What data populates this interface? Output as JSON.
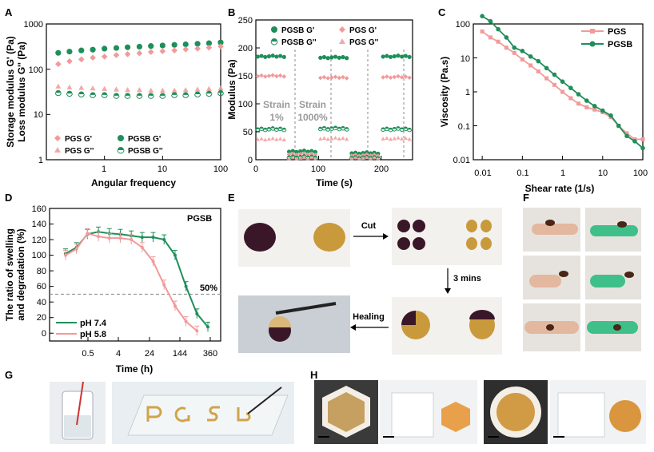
{
  "colors": {
    "pgs": "#f29a9a",
    "pgsb": "#1e8f5a",
    "dash": "#888888"
  },
  "panels": {
    "A": "A",
    "B": "B",
    "C": "C",
    "D": "D",
    "E": "E",
    "F": "F",
    "G": "G",
    "H": "H"
  },
  "chart_data": [
    {
      "id": "A",
      "type": "scatter",
      "xlabel": "Angular frequency",
      "ylabel_line1": "Storage modulus G' (Pa)",
      "ylabel_line2": "Loss modulus G'' (Pa)",
      "xscale": "log",
      "yscale": "log",
      "xlim": [
        0.1,
        100
      ],
      "ylim": [
        1,
        1000
      ],
      "xticks": [
        "1",
        "10",
        "100"
      ],
      "yticks": [
        "1",
        "10",
        "100",
        "1000"
      ],
      "legend": [
        "PGS G'",
        "PGS G''",
        "PGSB G'",
        "PGSB G''"
      ],
      "series": [
        {
          "name": "PGSB G'",
          "x": [
            0.16,
            0.25,
            0.4,
            0.63,
            1,
            1.6,
            2.5,
            4,
            6.3,
            10,
            16,
            25,
            40,
            63,
            100
          ],
          "values": [
            230,
            245,
            260,
            270,
            285,
            295,
            305,
            315,
            325,
            335,
            345,
            355,
            365,
            375,
            390
          ]
        },
        {
          "name": "PGS G'",
          "x": [
            0.16,
            0.25,
            0.4,
            0.63,
            1,
            1.6,
            2.5,
            4,
            6.3,
            10,
            16,
            25,
            40,
            63,
            100
          ],
          "values": [
            130,
            150,
            165,
            180,
            190,
            205,
            215,
            225,
            240,
            250,
            260,
            275,
            285,
            300,
            320
          ]
        },
        {
          "name": "PGS G''",
          "x": [
            0.16,
            0.25,
            0.4,
            0.63,
            1,
            1.6,
            2.5,
            4,
            6.3,
            10,
            16,
            25,
            40,
            63,
            100
          ],
          "values": [
            42,
            40,
            39,
            38,
            37,
            36,
            35,
            35,
            34,
            34,
            34,
            35,
            36,
            37,
            38
          ]
        },
        {
          "name": "PGSB G''",
          "x": [
            0.16,
            0.25,
            0.4,
            0.63,
            1,
            1.6,
            2.5,
            4,
            6.3,
            10,
            16,
            25,
            40,
            63,
            100
          ],
          "values": [
            30,
            29,
            28,
            27,
            27,
            26,
            26,
            26,
            26,
            26,
            27,
            27,
            28,
            29,
            30
          ]
        }
      ]
    },
    {
      "id": "B",
      "type": "scatter",
      "xlabel": "Time (s)",
      "ylabel": "Modulus (Pa)",
      "xlim": [
        0,
        250
      ],
      "ylim": [
        0,
        250
      ],
      "xticks": [
        "0",
        "100",
        "200"
      ],
      "yticks": [
        "0",
        "50",
        "100",
        "150",
        "200",
        "250"
      ],
      "legend": [
        "PGSB G'",
        "PGS G'",
        "PGSB G''",
        "PGS G''"
      ],
      "annotations": [
        "Strain",
        "1%",
        "Strain",
        "1000%"
      ],
      "segments": [
        [
          0,
          50
        ],
        [
          50,
          100
        ],
        [
          100,
          150
        ],
        [
          150,
          200
        ],
        [
          200,
          250
        ]
      ],
      "series": [
        {
          "name": "PGSB G'",
          "values": [
            185,
            15,
            183,
            12,
            185
          ]
        },
        {
          "name": "PGS G'",
          "values": [
            150,
            10,
            147,
            8,
            148
          ]
        },
        {
          "name": "PGSB G''",
          "values": [
            55,
            5,
            56,
            4,
            55
          ]
        },
        {
          "name": "PGS G''",
          "values": [
            37,
            3,
            38,
            3,
            38
          ]
        }
      ]
    },
    {
      "id": "C",
      "type": "line",
      "xlabel": "Shear rate (1/s)",
      "ylabel": "Viscosity (Pa.s)",
      "xscale": "log",
      "yscale": "log",
      "xlim": [
        0.006,
        100
      ],
      "ylim": [
        0.01,
        100
      ],
      "xticks": [
        "0.01",
        "0.1",
        "1",
        "10",
        "100"
      ],
      "yticks": [
        "0.01",
        "0.1",
        "1",
        "10",
        "100"
      ],
      "legend": [
        "PGS",
        "PGSB"
      ],
      "series": [
        {
          "name": "PGS",
          "x": [
            0.01,
            0.016,
            0.025,
            0.04,
            0.063,
            0.1,
            0.16,
            0.25,
            0.4,
            0.63,
            1,
            1.6,
            2.5,
            4,
            6.3,
            10,
            16,
            25,
            40,
            63,
            100
          ],
          "values": [
            60,
            40,
            30,
            20,
            14,
            9,
            6,
            4,
            2.5,
            1.6,
            1,
            0.65,
            0.45,
            0.35,
            0.3,
            0.25,
            0.18,
            0.1,
            0.06,
            0.04,
            0.04
          ]
        },
        {
          "name": "PGSB",
          "x": [
            0.01,
            0.016,
            0.025,
            0.04,
            0.063,
            0.1,
            0.16,
            0.25,
            0.4,
            0.63,
            1,
            1.6,
            2.5,
            4,
            6.3,
            10,
            16,
            25,
            40,
            63,
            100
          ],
          "values": [
            170,
            120,
            70,
            40,
            20,
            16,
            11,
            8,
            5,
            3.2,
            2,
            1.3,
            0.85,
            0.55,
            0.38,
            0.28,
            0.2,
            0.1,
            0.05,
            0.035,
            0.022
          ]
        }
      ]
    },
    {
      "id": "D",
      "type": "line",
      "xlabel": "Time (h)",
      "ylabel_line1": "The ratio of swelling",
      "ylabel_line2": "and degradation (%)",
      "xticks": [
        "0.5",
        "4",
        "24",
        "144",
        "360"
      ],
      "yticks": [
        "0",
        "20",
        "40",
        "60",
        "80",
        "100",
        "120",
        "140",
        "160"
      ],
      "ylim": [
        -10,
        160
      ],
      "title": "PGSB",
      "reference_line": {
        "value": 50,
        "label": "50%"
      },
      "legend": [
        "pH 7.4",
        "pH 5.8"
      ],
      "series": [
        {
          "name": "pH 7.4",
          "x": [
            0,
            1,
            2,
            3,
            4,
            5,
            6,
            7,
            8,
            9,
            10,
            11,
            12,
            13
          ],
          "values": [
            102,
            110,
            127,
            130,
            128,
            127,
            125,
            123,
            123,
            120,
            100,
            60,
            25,
            8
          ]
        },
        {
          "name": "pH 5.8",
          "x": [
            0,
            1,
            2,
            3,
            4,
            5,
            6,
            7,
            8,
            9,
            10,
            11,
            12
          ],
          "values": [
            100,
            108,
            128,
            124,
            122,
            122,
            120,
            110,
            92,
            62,
            35,
            15,
            3
          ]
        }
      ]
    }
  ],
  "panel_e": {
    "cut": "Cut",
    "time": "3 mins",
    "healing": "Healing"
  }
}
